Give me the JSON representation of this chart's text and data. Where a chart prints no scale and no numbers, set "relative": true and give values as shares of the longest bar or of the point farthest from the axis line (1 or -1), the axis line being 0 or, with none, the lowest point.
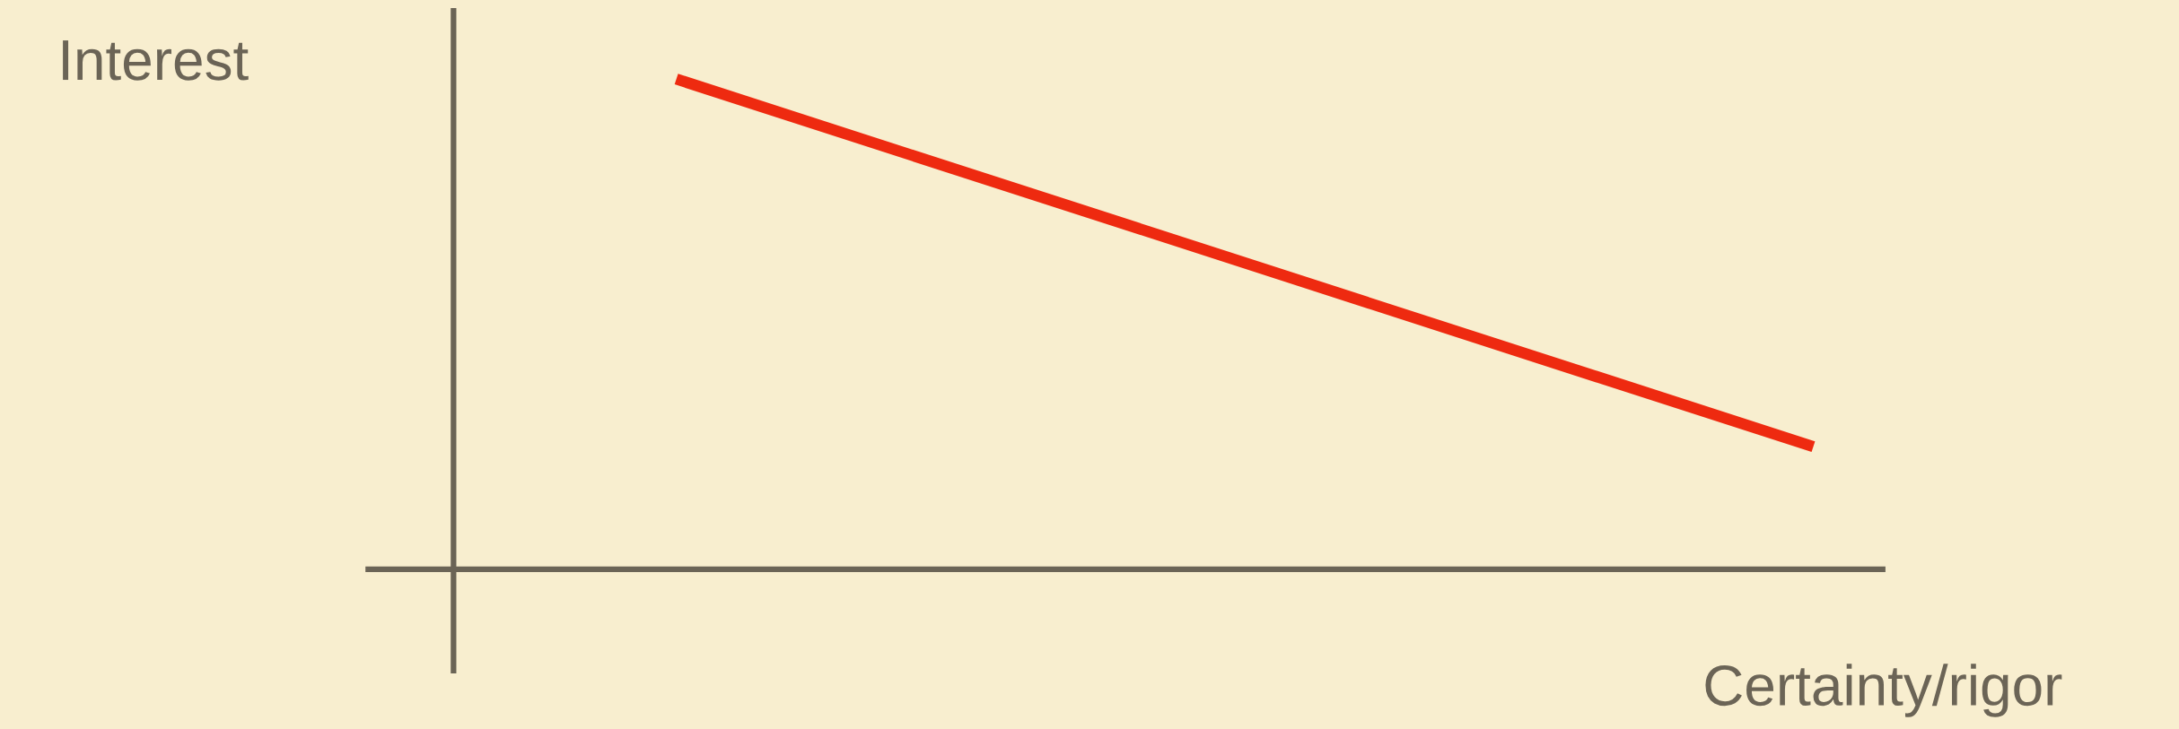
{
  "chart_data": {
    "type": "line",
    "relative": true,
    "xlabel": "Certainty/rigor",
    "ylabel": "Interest",
    "categories": [
      null,
      null
    ],
    "series": [
      {
        "color": "#ee2a10",
        "values": [
          1,
          0.25
        ]
      }
    ],
    "legend": false,
    "marker": "none",
    "line_style": "solid"
  }
}
